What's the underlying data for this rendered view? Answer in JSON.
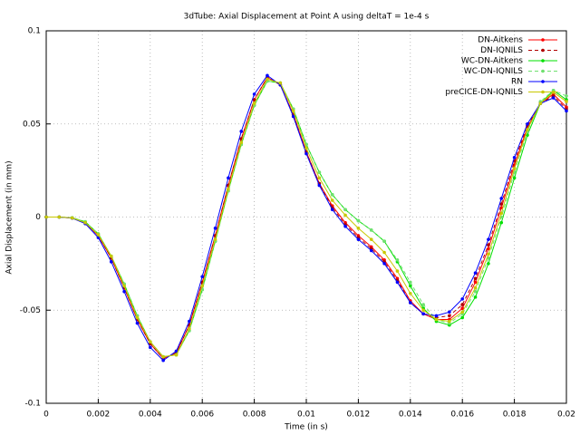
{
  "chart_data": {
    "type": "line",
    "title": "3dTube: Axial Displacement at Point A using deltaT = 1e-4 s",
    "x_label": "Time (in s)",
    "y_label": "Axial Displacement (in mm)",
    "x": [
      0,
      0.0005,
      0.001,
      0.0015,
      0.002,
      0.0025,
      0.003,
      0.0035,
      0.004,
      0.0045,
      0.005,
      0.0055,
      0.006,
      0.0065,
      0.007,
      0.0075,
      0.008,
      0.0085,
      0.009,
      0.0095,
      0.01,
      0.0105,
      0.011,
      0.0115,
      0.012,
      0.0125,
      0.013,
      0.0135,
      0.014,
      0.0145,
      0.015,
      0.0155,
      0.016,
      0.0165,
      0.017,
      0.0175,
      0.018,
      0.0185,
      0.019,
      0.0195,
      0.02
    ],
    "series": [
      {
        "name": "DN-Aitkens",
        "color": "#ff0000",
        "dashed": false,
        "values": [
          0,
          0,
          -0.0005,
          -0.003,
          -0.01,
          -0.022,
          -0.038,
          -0.055,
          -0.068,
          -0.076,
          -0.073,
          -0.058,
          -0.035,
          -0.01,
          0.017,
          0.042,
          0.063,
          0.075,
          0.071,
          0.055,
          0.035,
          0.018,
          0.006,
          -0.003,
          -0.01,
          -0.016,
          -0.023,
          -0.033,
          -0.045,
          -0.052,
          -0.055,
          -0.055,
          -0.049,
          -0.035,
          -0.017,
          0.005,
          0.028,
          0.048,
          0.061,
          0.066,
          0.059
        ]
      },
      {
        "name": "DN-IQNILS",
        "color": "#b00000",
        "dashed": true,
        "values": [
          0,
          0,
          -0.0005,
          -0.003,
          -0.01,
          -0.022,
          -0.038,
          -0.055,
          -0.068,
          -0.076,
          -0.073,
          -0.058,
          -0.035,
          -0.01,
          0.017,
          0.042,
          0.063,
          0.075,
          0.071,
          0.055,
          0.035,
          0.018,
          0.005,
          -0.004,
          -0.011,
          -0.017,
          -0.024,
          -0.034,
          -0.046,
          -0.052,
          -0.054,
          -0.053,
          -0.047,
          -0.033,
          -0.015,
          0.007,
          0.03,
          0.049,
          0.061,
          0.065,
          0.058
        ]
      },
      {
        "name": "WC-DN-Aitkens",
        "color": "#00e000",
        "dashed": false,
        "values": [
          0,
          0,
          -0.0004,
          -0.0025,
          -0.009,
          -0.021,
          -0.036,
          -0.053,
          -0.067,
          -0.075,
          -0.074,
          -0.061,
          -0.039,
          -0.013,
          0.014,
          0.039,
          0.06,
          0.073,
          0.072,
          0.058,
          0.039,
          0.024,
          0.012,
          0.004,
          -0.002,
          -0.007,
          -0.013,
          -0.024,
          -0.037,
          -0.049,
          -0.056,
          -0.058,
          -0.054,
          -0.043,
          -0.025,
          -0.003,
          0.021,
          0.044,
          0.061,
          0.068,
          0.063
        ]
      },
      {
        "name": "WC-DN-IQNILS",
        "color": "#70e070",
        "dashed": true,
        "values": [
          0,
          0,
          -0.0004,
          -0.0025,
          -0.009,
          -0.021,
          -0.036,
          -0.053,
          -0.067,
          -0.075,
          -0.074,
          -0.061,
          -0.039,
          -0.013,
          0.014,
          0.039,
          0.06,
          0.073,
          0.072,
          0.058,
          0.039,
          0.024,
          0.012,
          0.004,
          -0.002,
          -0.007,
          -0.013,
          -0.023,
          -0.035,
          -0.047,
          -0.055,
          -0.057,
          -0.052,
          -0.04,
          -0.022,
          0,
          0.024,
          0.046,
          0.062,
          0.068,
          0.065
        ]
      },
      {
        "name": "RN",
        "color": "#0000ff",
        "dashed": false,
        "values": [
          0,
          0,
          -0.0006,
          -0.0035,
          -0.011,
          -0.024,
          -0.04,
          -0.057,
          -0.07,
          -0.077,
          -0.072,
          -0.056,
          -0.032,
          -0.006,
          0.021,
          0.046,
          0.066,
          0.076,
          0.071,
          0.054,
          0.034,
          0.017,
          0.004,
          -0.005,
          -0.012,
          -0.018,
          -0.025,
          -0.035,
          -0.046,
          -0.052,
          -0.053,
          -0.051,
          -0.044,
          -0.03,
          -0.012,
          0.01,
          0.032,
          0.05,
          0.061,
          0.064,
          0.057
        ]
      },
      {
        "name": "preCICE-DN-IQNILS",
        "color": "#c8c800",
        "dashed": false,
        "values": [
          0,
          0,
          -0.0005,
          -0.003,
          -0.0095,
          -0.021,
          -0.037,
          -0.054,
          -0.067,
          -0.075,
          -0.074,
          -0.06,
          -0.037,
          -0.012,
          0.015,
          0.04,
          0.061,
          0.074,
          0.072,
          0.057,
          0.037,
          0.021,
          0.009,
          0.001,
          -0.006,
          -0.012,
          -0.019,
          -0.029,
          -0.041,
          -0.05,
          -0.055,
          -0.056,
          -0.051,
          -0.038,
          -0.02,
          0.002,
          0.026,
          0.047,
          0.061,
          0.067,
          0.062
        ]
      }
    ],
    "xlim": [
      0,
      0.02
    ],
    "xticks": [
      0,
      0.002,
      0.004,
      0.006,
      0.008,
      0.01,
      0.012,
      0.014,
      0.016,
      0.018,
      0.02
    ],
    "ylim": [
      -0.1,
      0.1
    ],
    "yticks": [
      -0.1,
      -0.05,
      0,
      0.05,
      0.1
    ],
    "grid": true,
    "legend": "top-right"
  }
}
